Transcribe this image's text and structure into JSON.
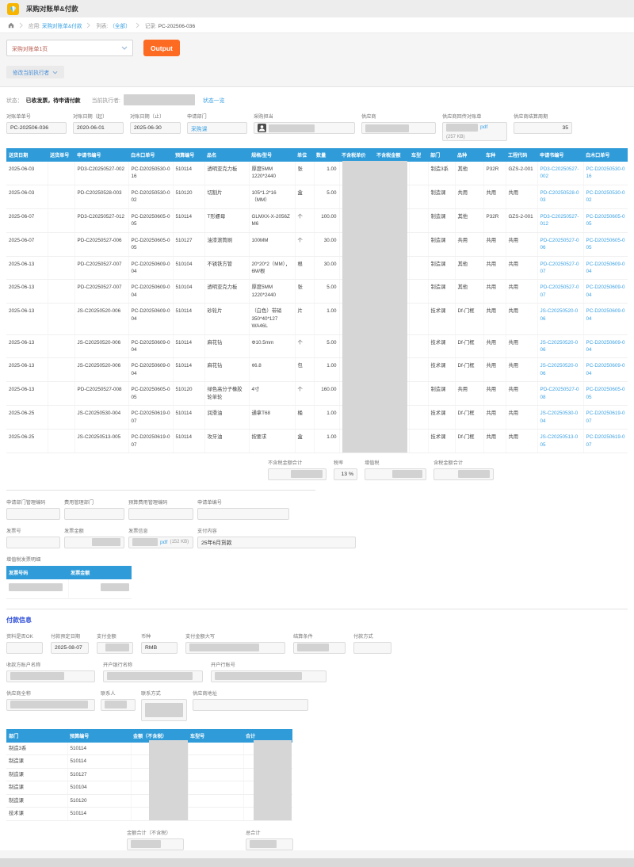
{
  "colors": {
    "brand_yellow": "#f7b500",
    "accent_orange": "#fd6a21",
    "table_header_blue": "#2f9cd9",
    "link_blue": "#3ba1e3",
    "section_title_blue": "#2b4bd7",
    "redact_gray": "#d2d2d2"
  },
  "header": {
    "title": "采购对账单&付款"
  },
  "breadcrumb": {
    "app_prefix": "应用:",
    "app_value": "采购对账单&付款",
    "list_prefix": "列表:",
    "list_value": "（全部）",
    "record_prefix": "记录:",
    "record_value": "PC-202506-036"
  },
  "toolbar": {
    "view_select": "采购对账单1页",
    "output_button": "Output",
    "change_executor_button": "修改当前执行者"
  },
  "status": {
    "label": "状态：",
    "value": "已收发票，待申请付款",
    "executor_label": "当前执行者:",
    "overview_link": "状态一览"
  },
  "head_fields": [
    {
      "id": "bill_no",
      "label": "对账单单号",
      "value": "PC-202506-036"
    },
    {
      "id": "date_from",
      "label": "对账日期（起）",
      "value": "2020-06-01"
    },
    {
      "id": "date_to",
      "label": "对账日期（止）",
      "value": "2025-06-30"
    },
    {
      "id": "req_dept",
      "label": "申请部门",
      "value": {
        "text": "采购课",
        "link": true
      }
    },
    {
      "id": "buyer",
      "label": "采购担当",
      "value": {
        "icon": "user",
        "redact": 58
      }
    },
    {
      "id": "supplier",
      "label": "供应商",
      "value": {
        "redact": 55
      }
    },
    {
      "id": "statement",
      "label": "供应商回传对账单",
      "value": {
        "redact": 40,
        "pdf": "pdf",
        "pdf_size": "(257 KB)"
      }
    },
    {
      "id": "cycle",
      "label": "供应商结算周期",
      "value": "35"
    }
  ],
  "main_table": {
    "columns": [
      "送货日期",
      "送货单号",
      "申请书编号",
      "白木口单号",
      "预算编号",
      "品名",
      "规格/型号",
      "单位",
      "数量",
      "不含税单价",
      "不含税金额",
      "车型",
      "部门",
      "品种",
      "车种",
      "工程代码",
      "申请书编号",
      "白木口单号"
    ],
    "link_cols": [
      16,
      17
    ],
    "rows": [
      [
        "2025-06-03",
        "",
        "PD3-C20250527-002",
        "PC-D20250530-016",
        "510114",
        "透明亚克力板",
        "厚度5MM 1220*2440",
        "张",
        "1.00",
        "",
        "",
        "",
        "制造3系",
        "其他",
        "P32R",
        "GZS-2-001",
        "PD3-C20250527-002",
        "PC-D20250530-016"
      ],
      [
        "2025-06-03",
        "",
        "PD-C20250528-003",
        "PC-D20250530-002",
        "510120",
        "切割片",
        "105*1.2*16（MM）",
        "盒",
        "5.00",
        "",
        "",
        "",
        "制造课",
        "共用",
        "共用",
        "共用",
        "PD-C20250528-003",
        "PC-D20250530-002"
      ],
      [
        "2025-06-07",
        "",
        "PD3-C20250527-012",
        "PC-D20250605-005",
        "510114",
        "T形螺母",
        "GLMXX-X-2056Z M6",
        "个",
        "100.00",
        "",
        "",
        "",
        "制造课",
        "其他",
        "P32R",
        "GZS-2-001",
        "PD3-C20250527-012",
        "PC-D20250605-005"
      ],
      [
        "2025-06-07",
        "",
        "PD-C20250527-006",
        "PC-D20250605-005",
        "510127",
        "油漆滚筒刷",
        "100MM",
        "个",
        "30.00",
        "",
        "",
        "",
        "制造课",
        "共用",
        "共用",
        "共用",
        "PD-C20250527-006",
        "PC-D20250605-005"
      ],
      [
        "2025-06-13",
        "",
        "PD-C20250527-007",
        "PC-D20250609-004",
        "510104",
        "不锈铁方管",
        "20*20*2（MM），6M/根",
        "根",
        "30.00",
        "",
        "",
        "",
        "制造课",
        "其他",
        "共用",
        "共用",
        "PD-C20250527-007",
        "PC-D20250609-004"
      ],
      [
        "2025-06-13",
        "",
        "PD-C20250527-007",
        "PC-D20250609-004",
        "510104",
        "透明亚克力板",
        "厚度5MM 1220*2440",
        "张",
        "5.00",
        "",
        "",
        "",
        "制造课",
        "其他",
        "共用",
        "共用",
        "PD-C20250527-007",
        "PC-D20250609-004"
      ],
      [
        "2025-06-13",
        "",
        "JS-C20250520-006",
        "PC-D20250609-004",
        "510114",
        "砂轮片",
        "（白色）带硝 350*40*127 WA46L",
        "片",
        "1.00",
        "",
        "",
        "",
        "技术课",
        "Df-门框",
        "共用",
        "共用",
        "JS-C20250520-006",
        "PC-D20250609-004"
      ],
      [
        "2025-06-13",
        "",
        "JS-C20250520-006",
        "PC-D20250609-004",
        "510114",
        "麻花钻",
        "Φ10.5mm",
        "个",
        "5.00",
        "",
        "",
        "",
        "技术课",
        "Df-门框",
        "共用",
        "共用",
        "JS-C20250520-006",
        "PC-D20250609-004"
      ],
      [
        "2025-06-13",
        "",
        "JS-C20250520-006",
        "PC-D20250609-004",
        "510114",
        "麻花钻",
        "¢6.8",
        "包",
        "1.00",
        "",
        "",
        "",
        "技术课",
        "Df-门框",
        "共用",
        "共用",
        "JS-C20250520-006",
        "PC-D20250609-004"
      ],
      [
        "2025-06-13",
        "",
        "PD-C20250527-008",
        "PC-D20250605-005",
        "510120",
        "绿色高分子橡胶轮单轮",
        "4寸",
        "个",
        "160.00",
        "",
        "",
        "",
        "制造课",
        "共用",
        "共用",
        "共用",
        "PD-C20250527-008",
        "PC-D20250605-005"
      ],
      [
        "2025-06-25",
        "",
        "JS-C20250530-004",
        "PC-D20250619-007",
        "510114",
        "润滑油",
        "通拿T68",
        "桶",
        "1.00",
        "",
        "",
        "",
        "技术课",
        "Df-门框",
        "共用",
        "共用",
        "JS-C20250530-004",
        "PC-D20250619-007"
      ],
      [
        "2025-06-25",
        "",
        "JS-C20250513-005",
        "PC-D20250619-007",
        "510114",
        "攻牙油",
        "按要求",
        "盒",
        "1.00",
        "",
        "",
        "",
        "技术课",
        "Df-门框",
        "共用",
        "共用",
        "JS-C20250513-005",
        "PC-D20250619-007"
      ]
    ]
  },
  "summary_fields": [
    {
      "id": "sum_ex",
      "label": "不含税金额合计",
      "value": {
        "redact": 40
      }
    },
    {
      "id": "tax_rate",
      "label": "税率",
      "value": "13 %"
    },
    {
      "id": "vat",
      "label": "增值税",
      "value": {
        "redact": 38
      }
    },
    {
      "id": "sum_inc",
      "label": "含税金额合计",
      "value": {
        "redact": 40
      }
    }
  ],
  "mgmt_fields": [
    {
      "id": "mgmt_code",
      "label": "申请部门管理编码",
      "value": ""
    },
    {
      "id": "cost_dept",
      "label": "费用管理部门",
      "value": ""
    },
    {
      "id": "budget_code",
      "label": "预算费用管理编码",
      "value": ""
    },
    {
      "id": "req_form_no",
      "label": "申请单编号",
      "value": ""
    }
  ],
  "invoice_fields": [
    {
      "id": "inv_no",
      "label": "发票号",
      "value": ""
    },
    {
      "id": "inv_amt",
      "label": "发票金额",
      "value": {
        "redact": 36
      }
    },
    {
      "id": "inv_info",
      "label": "发票信息",
      "value": {
        "redact": 32,
        "pdf": "pdf",
        "pdf_size": "(152 KB)"
      }
    },
    {
      "id": "pay_content",
      "label": "支付内容",
      "value": "25年6月货款"
    }
  ],
  "invoice_detail": {
    "title": "增值税发票明细",
    "table": {
      "columns": [
        "发票号码",
        "发票金额"
      ],
      "rows": [
        [
          {
            "redact": 68
          },
          {
            "redact": 36
          }
        ]
      ]
    }
  },
  "payment": {
    "title": "付款信息",
    "row1": [
      {
        "id": "data_ok",
        "label": "资料是否OK",
        "value": ""
      },
      {
        "id": "pay_date",
        "label": "付款预定日期",
        "value": "2025-08-07"
      },
      {
        "id": "pay_amt",
        "label": "支付金额",
        "value": {
          "redact": 30
        }
      },
      {
        "id": "currency",
        "label": "币种",
        "value": "RMB"
      },
      {
        "id": "amt_words",
        "label": "支付金额大写",
        "value": {
          "redact": 88
        }
      },
      {
        "id": "settle_cond",
        "label": "结算条件",
        "value": {
          "redact": 40
        }
      },
      {
        "id": "pay_method",
        "label": "付款方式",
        "value": ""
      }
    ],
    "row2": [
      {
        "id": "payee_name",
        "label": "收款方账户名称",
        "value": {
          "redact": 68
        }
      },
      {
        "id": "bank_name",
        "label": "开户银行名称",
        "value": {
          "redact": 108
        }
      },
      {
        "id": "bank_acct",
        "label": "开户行账号",
        "value": {
          "redact": 110
        }
      }
    ],
    "row3": [
      {
        "id": "supplier_full",
        "label": "供应商全称",
        "value": {
          "redact": 98
        }
      },
      {
        "id": "contact",
        "label": "联系人",
        "value": {
          "redact": 28
        }
      },
      {
        "id": "contact_way",
        "label": "联系方式",
        "value": {
          "redact": 48,
          "rh": 18
        }
      },
      {
        "id": "supplier_addr",
        "label": "供应商地址",
        "value": ""
      }
    ],
    "dept_table": {
      "columns": [
        "部门",
        "预算编号",
        "金额（不含税）",
        "车型号",
        "合计"
      ],
      "rows": [
        [
          "制造3系",
          "510114",
          "",
          "",
          ""
        ],
        [
          "制造课",
          "510114",
          "",
          "",
          ""
        ],
        [
          "制造课",
          "510127",
          "",
          "",
          ""
        ],
        [
          "制造课",
          "510104",
          "",
          "",
          ""
        ],
        [
          "制造课",
          "510120",
          "",
          "",
          ""
        ],
        [
          "技术课",
          "510114",
          "",
          "",
          ""
        ]
      ]
    },
    "totals": [
      {
        "id": "total_ex",
        "label": "金额合计（不含税）",
        "value": {
          "redact": 38
        }
      },
      {
        "id": "grand_total",
        "label": "总合计",
        "value": {
          "redact": 34
        }
      }
    ]
  }
}
